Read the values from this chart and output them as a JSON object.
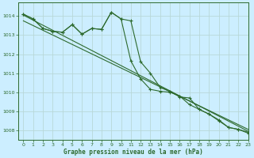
{
  "title": "Graphe pression niveau de la mer (hPa)",
  "bg_color": "#cceeff",
  "grid_color": "#b8d8d8",
  "line_color": "#2d6a2d",
  "xlim": [
    -0.5,
    23
  ],
  "ylim": [
    1007.5,
    1014.7
  ],
  "yticks": [
    1008,
    1009,
    1010,
    1011,
    1012,
    1013,
    1014
  ],
  "xticks": [
    0,
    1,
    2,
    3,
    4,
    5,
    6,
    7,
    8,
    9,
    10,
    11,
    12,
    13,
    14,
    15,
    16,
    17,
    18,
    19,
    20,
    21,
    22,
    23
  ],
  "series1": [
    1014.1,
    1013.85,
    1013.35,
    1013.2,
    1013.15,
    1013.55,
    1013.05,
    1013.35,
    1013.3,
    1014.2,
    1013.85,
    1013.75,
    1011.6,
    1011.0,
    1010.25,
    1010.05,
    1009.75,
    1009.7,
    1009.1,
    1008.85,
    1008.55,
    1008.15,
    1008.05,
    1007.9
  ],
  "series2": [
    1014.1,
    1013.85,
    1013.35,
    1013.2,
    1013.15,
    1013.55,
    1013.05,
    1013.35,
    1013.3,
    1014.2,
    1013.85,
    1011.65,
    1010.7,
    1010.15,
    1010.05,
    1010.0,
    1009.8,
    1009.35,
    1009.1,
    1008.85,
    1008.5,
    1008.15,
    1008.05,
    1007.85
  ],
  "trend1_x": [
    0,
    23
  ],
  "trend1_y": [
    1014.05,
    1007.95
  ],
  "trend2_x": [
    0,
    23
  ],
  "trend2_y": [
    1013.75,
    1008.05
  ]
}
